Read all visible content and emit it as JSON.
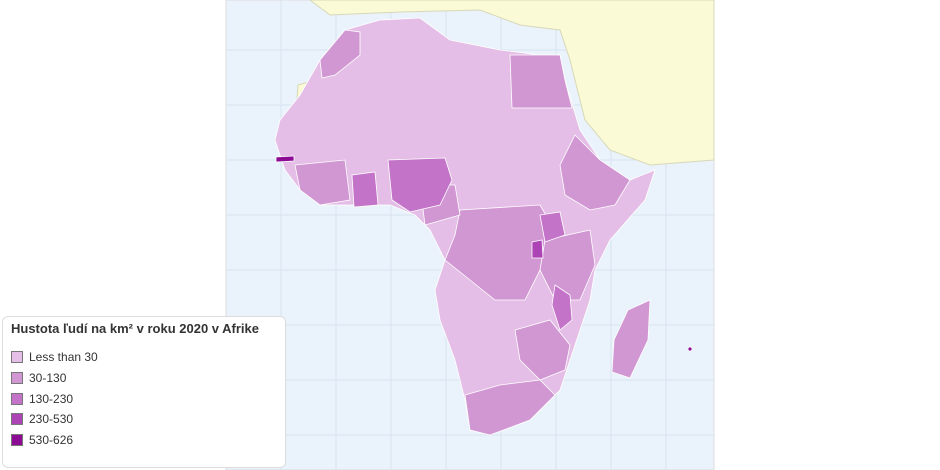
{
  "legend": {
    "title": "Hustota ľudí na km² v roku 2020 v Afrike",
    "items": [
      {
        "label": "Less than 30",
        "color": "#e4bee6"
      },
      {
        "label": "30-130",
        "color": "#d197d3"
      },
      {
        "label": "130-230",
        "color": "#c374c9"
      },
      {
        "label": "230-530",
        "color": "#ac44b5"
      },
      {
        "label": "530-626",
        "color": "#8c0a94"
      }
    ]
  }
}
